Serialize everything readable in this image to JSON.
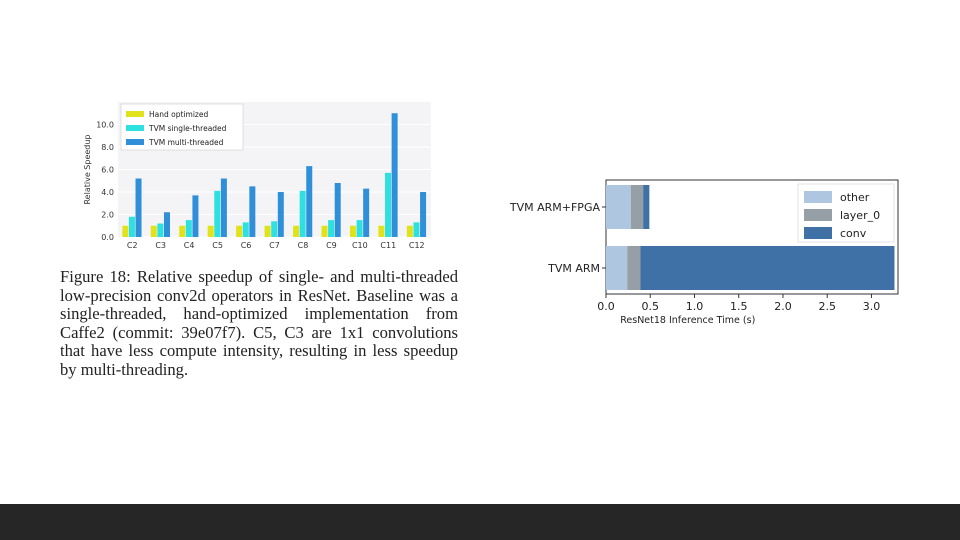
{
  "chart_data": [
    {
      "type": "bar",
      "ylabel": "Relative Speedup",
      "xlabel": "",
      "ylim": [
        0,
        12
      ],
      "yticks": [
        "0.0",
        "2.0",
        "4.0",
        "6.0",
        "8.0",
        "10.0"
      ],
      "grid": true,
      "legend_position": "top-left",
      "categories": [
        "C2",
        "C3",
        "C4",
        "C5",
        "C6",
        "C7",
        "C8",
        "C9",
        "C10",
        "C11",
        "C12"
      ],
      "series": [
        {
          "name": "Hand optimized",
          "color": "#e2e21a",
          "values": [
            1,
            1,
            1,
            1,
            1,
            1,
            1,
            1,
            1,
            1,
            1
          ]
        },
        {
          "name": "TVM single-threaded",
          "color": "#2ee0e0",
          "values": [
            1.8,
            1.2,
            1.5,
            4.1,
            1.3,
            1.4,
            4.1,
            1.5,
            1.5,
            5.7,
            1.3
          ]
        },
        {
          "name": "TVM multi-threaded",
          "color": "#2f8fd8",
          "values": [
            5.2,
            2.2,
            3.7,
            5.2,
            4.5,
            4.0,
            6.3,
            4.8,
            4.3,
            11.0,
            4.0
          ]
        }
      ]
    },
    {
      "type": "bar",
      "orientation": "horizontal",
      "stacked": true,
      "xlabel": "ResNet18 Inference Time (s)",
      "ylabel": "",
      "xlim": [
        0,
        3.3
      ],
      "xticks": [
        "0.0",
        "0.5",
        "1.0",
        "1.5",
        "2.0",
        "2.5",
        "3.0"
      ],
      "legend_position": "top-right",
      "categories": [
        "TVM ARM+FPGA",
        "TVM ARM"
      ],
      "series": [
        {
          "name": "other",
          "color": "#aec6e0",
          "values": [
            0.28,
            0.24
          ]
        },
        {
          "name": "layer_0",
          "color": "#979fa6",
          "values": [
            0.14,
            0.15
          ]
        },
        {
          "name": "conv",
          "color": "#3f70a6",
          "values": [
            0.07,
            2.87
          ]
        }
      ]
    }
  ],
  "caption": {
    "text": "Figure 18:  Relative speedup of single- and multi-threaded low-precision conv2d operators in ResNet. Baseline was a single-threaded, hand-optimized implementation from Caffe2 (commit: 39e07f7). C5, C3 are 1x1 convolutions that have less compute intensity, resulting in less speedup by multi-threading."
  }
}
